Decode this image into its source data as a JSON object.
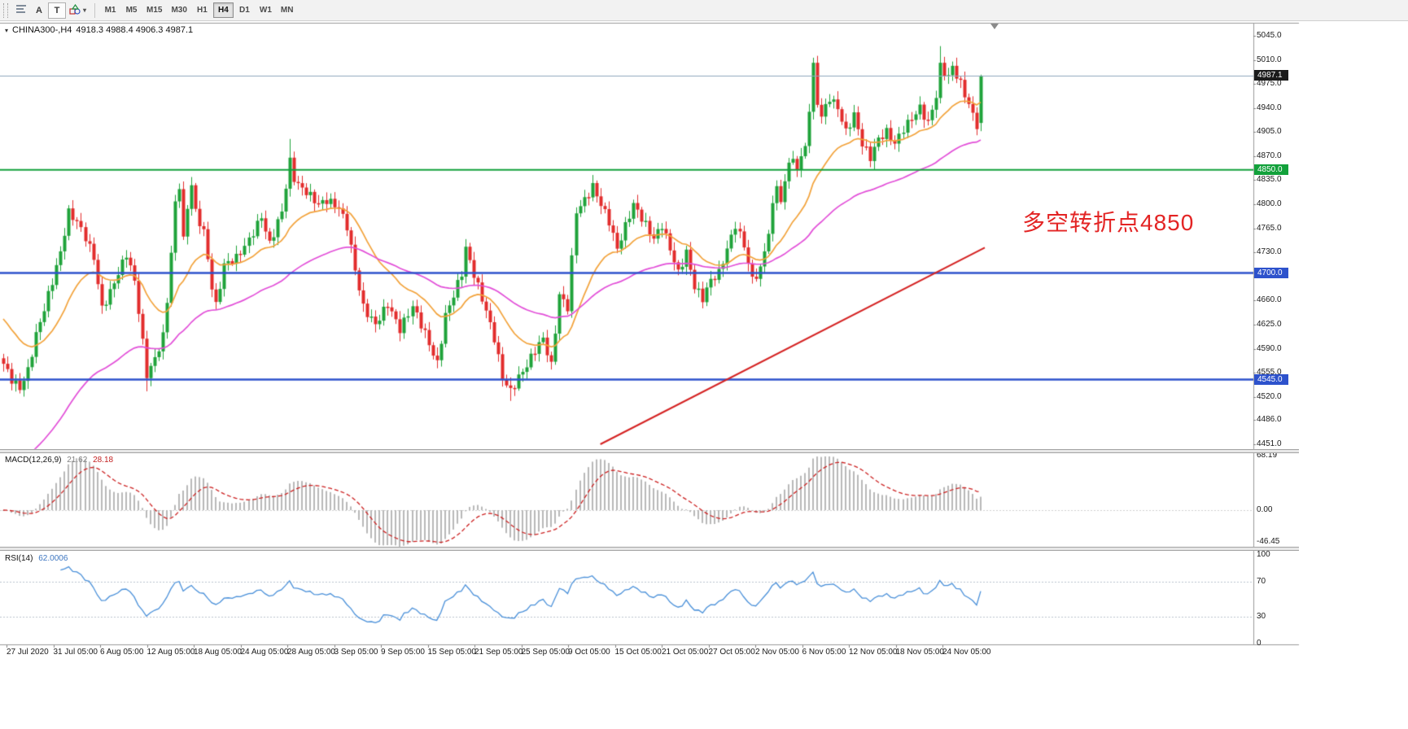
{
  "toolbar": {
    "tools": {
      "a_label": "A",
      "t_label": "T"
    },
    "timeframes": [
      {
        "label": "M1",
        "active": false
      },
      {
        "label": "M5",
        "active": false
      },
      {
        "label": "M15",
        "active": false
      },
      {
        "label": "M30",
        "active": false
      },
      {
        "label": "H1",
        "active": false
      },
      {
        "label": "H4",
        "active": true
      },
      {
        "label": "D1",
        "active": false
      },
      {
        "label": "W1",
        "active": false
      },
      {
        "label": "MN",
        "active": false
      }
    ]
  },
  "chart": {
    "title": "CHINA300-,H4",
    "ohlc_text": "4918.3 4988.4 4906.3 4987.1",
    "annotation": "多空转折点4850",
    "annotation_color": "#e32424"
  },
  "chart_data": {
    "type": "candlestick",
    "symbol": "CHINA300-",
    "timeframe": "H4",
    "last_bar_ohlc": {
      "open": 4918.3,
      "high": 4988.4,
      "low": 4906.3,
      "close": 4987.1
    },
    "up_color": "#1fa33a",
    "down_color": "#e22c2c",
    "bars": 240,
    "close_anchors": [
      [
        0,
        4568
      ],
      [
        2,
        4545
      ],
      [
        4,
        4532
      ],
      [
        6,
        4558
      ],
      [
        8,
        4610
      ],
      [
        10,
        4648
      ],
      [
        12,
        4688
      ],
      [
        14,
        4730
      ],
      [
        16,
        4788
      ],
      [
        18,
        4775
      ],
      [
        20,
        4752
      ],
      [
        22,
        4722
      ],
      [
        24,
        4648
      ],
      [
        26,
        4672
      ],
      [
        28,
        4700
      ],
      [
        30,
        4728
      ],
      [
        32,
        4688
      ],
      [
        33,
        4645
      ],
      [
        35,
        4552
      ],
      [
        37,
        4575
      ],
      [
        39,
        4608
      ],
      [
        40,
        4660
      ],
      [
        41,
        4730
      ],
      [
        42,
        4800
      ],
      [
        43,
        4828
      ],
      [
        44,
        4748
      ],
      [
        45,
        4795
      ],
      [
        46,
        4830
      ],
      [
        47,
        4788
      ],
      [
        49,
        4760
      ],
      [
        51,
        4680
      ],
      [
        52,
        4652
      ],
      [
        54,
        4712
      ],
      [
        57,
        4722
      ],
      [
        60,
        4748
      ],
      [
        63,
        4782
      ],
      [
        65,
        4742
      ],
      [
        68,
        4790
      ],
      [
        70,
        4862
      ],
      [
        71,
        4838
      ],
      [
        72,
        4828
      ],
      [
        74,
        4818
      ],
      [
        77,
        4800
      ],
      [
        79,
        4806
      ],
      [
        82,
        4795
      ],
      [
        84,
        4768
      ],
      [
        86,
        4705
      ],
      [
        88,
        4650
      ],
      [
        91,
        4625
      ],
      [
        94,
        4655
      ],
      [
        97,
        4618
      ],
      [
        100,
        4652
      ],
      [
        103,
        4612
      ],
      [
        105,
        4582
      ],
      [
        106,
        4568
      ],
      [
        108,
        4638
      ],
      [
        110,
        4668
      ],
      [
        112,
        4700
      ],
      [
        113,
        4736
      ],
      [
        115,
        4698
      ],
      [
        118,
        4645
      ],
      [
        120,
        4605
      ],
      [
        122,
        4548
      ],
      [
        124,
        4528
      ],
      [
        126,
        4548
      ],
      [
        128,
        4566
      ],
      [
        130,
        4588
      ],
      [
        132,
        4605
      ],
      [
        134,
        4565
      ],
      [
        136,
        4668
      ],
      [
        138,
        4650
      ],
      [
        140,
        4790
      ],
      [
        142,
        4806
      ],
      [
        144,
        4826
      ],
      [
        146,
        4800
      ],
      [
        148,
        4775
      ],
      [
        150,
        4735
      ],
      [
        152,
        4768
      ],
      [
        154,
        4800
      ],
      [
        156,
        4780
      ],
      [
        159,
        4750
      ],
      [
        161,
        4770
      ],
      [
        163,
        4735
      ],
      [
        165,
        4700
      ],
      [
        167,
        4730
      ],
      [
        169,
        4680
      ],
      [
        171,
        4663
      ],
      [
        173,
        4690
      ],
      [
        175,
        4700
      ],
      [
        177,
        4735
      ],
      [
        179,
        4770
      ],
      [
        181,
        4740
      ],
      [
        183,
        4690
      ],
      [
        185,
        4705
      ],
      [
        187,
        4760
      ],
      [
        189,
        4832
      ],
      [
        190,
        4800
      ],
      [
        192,
        4865
      ],
      [
        194,
        4855
      ],
      [
        196,
        4882
      ],
      [
        197,
        4940
      ],
      [
        198,
        5000
      ],
      [
        199,
        4948
      ],
      [
        200,
        4928
      ],
      [
        202,
        4955
      ],
      [
        204,
        4940
      ],
      [
        206,
        4905
      ],
      [
        208,
        4930
      ],
      [
        210,
        4888
      ],
      [
        212,
        4868
      ],
      [
        214,
        4895
      ],
      [
        216,
        4905
      ],
      [
        218,
        4888
      ],
      [
        220,
        4910
      ],
      [
        222,
        4925
      ],
      [
        224,
        4940
      ],
      [
        226,
        4918
      ],
      [
        228,
        4958
      ],
      [
        229,
        5000
      ],
      [
        231,
        4985
      ],
      [
        232,
        5000
      ],
      [
        234,
        4975
      ],
      [
        236,
        4945
      ],
      [
        238,
        4915
      ],
      [
        239,
        4987.1
      ]
    ],
    "last_bar": [
      4918.3,
      4988.4,
      4906.3,
      4987.1
    ],
    "spikes": [
      {
        "bar": 35,
        "low": 4528
      },
      {
        "bar": 70,
        "high": 4895
      },
      {
        "bar": 124,
        "low": 4514
      },
      {
        "bar": 229,
        "high": 5030
      }
    ],
    "price_axis": {
      "labels": [
        "5045.0",
        "5010.0",
        "4975.0",
        "4940.0",
        "4905.0",
        "4870.0",
        "4835.0",
        "4800.0",
        "4765.0",
        "4730.0",
        "4695.0",
        "4660.0",
        "4625.0",
        "4590.0",
        "4555.0",
        "4520.0",
        "4486.0",
        "4451.0"
      ],
      "min": 4451.0,
      "max": 5045.0
    },
    "time_axis": [
      "27 Jul 2020",
      "31 Jul 05:00",
      "6 Aug 05:00",
      "12 Aug 05:00",
      "18 Aug 05:00",
      "24 Aug 05:00",
      "28 Aug 05:00",
      "3 Sep 05:00",
      "9 Sep 05:00",
      "15 Sep 05:00",
      "21 Sep 05:00",
      "25 Sep 05:00",
      "9 Oct 05:00",
      "15 Oct 05:00",
      "21 Oct 05:00",
      "27 Oct 05:00",
      "2 Nov 05:00",
      "6 Nov 05:00",
      "12 Nov 05:00",
      "18 Nov 05:00",
      "24 Nov 05:00"
    ],
    "horizontal_lines": [
      {
        "price": 4850,
        "label": "4850.0",
        "color": "#12a13b",
        "width": 2
      },
      {
        "price": 4700,
        "label": "4700.0",
        "color": "#2d52cc",
        "width": 2.5
      },
      {
        "price": 4545,
        "label": "4545.0",
        "color": "#2d52cc",
        "width": 2.5
      }
    ],
    "bid_line": {
      "price": 4987.1,
      "label": "4987.1",
      "color": "#8fa6bd",
      "tag_color": "#1b1b1b"
    },
    "trendline": {
      "from": [
        146,
        4451
      ],
      "to": [
        240,
        4737
      ],
      "color": "#d42222",
      "width": 2
    },
    "moving_averages": [
      {
        "period": 20,
        "color": "#f2a23a",
        "seed": 4640
      },
      {
        "period": 60,
        "color": "#e24fd8",
        "seed": 4405
      }
    ],
    "macd": {
      "label": "MACD(12,26,9)",
      "value_main": "21.62",
      "value_signal": "28.18",
      "axis": [
        "68.19",
        "0.00",
        "-46.45"
      ],
      "fast": 12,
      "slow": 26,
      "signal": 9,
      "histogram_color": "#b8b8b8",
      "signal_color": "#cc2222"
    },
    "rsi": {
      "label": "RSI(14)",
      "value": "62.0006",
      "axis": [
        "100",
        "70",
        "30",
        "0"
      ],
      "period": 14,
      "color": "#4a90d9",
      "levels": [
        70,
        30
      ],
      "level_color": "#b9c2cc"
    }
  }
}
